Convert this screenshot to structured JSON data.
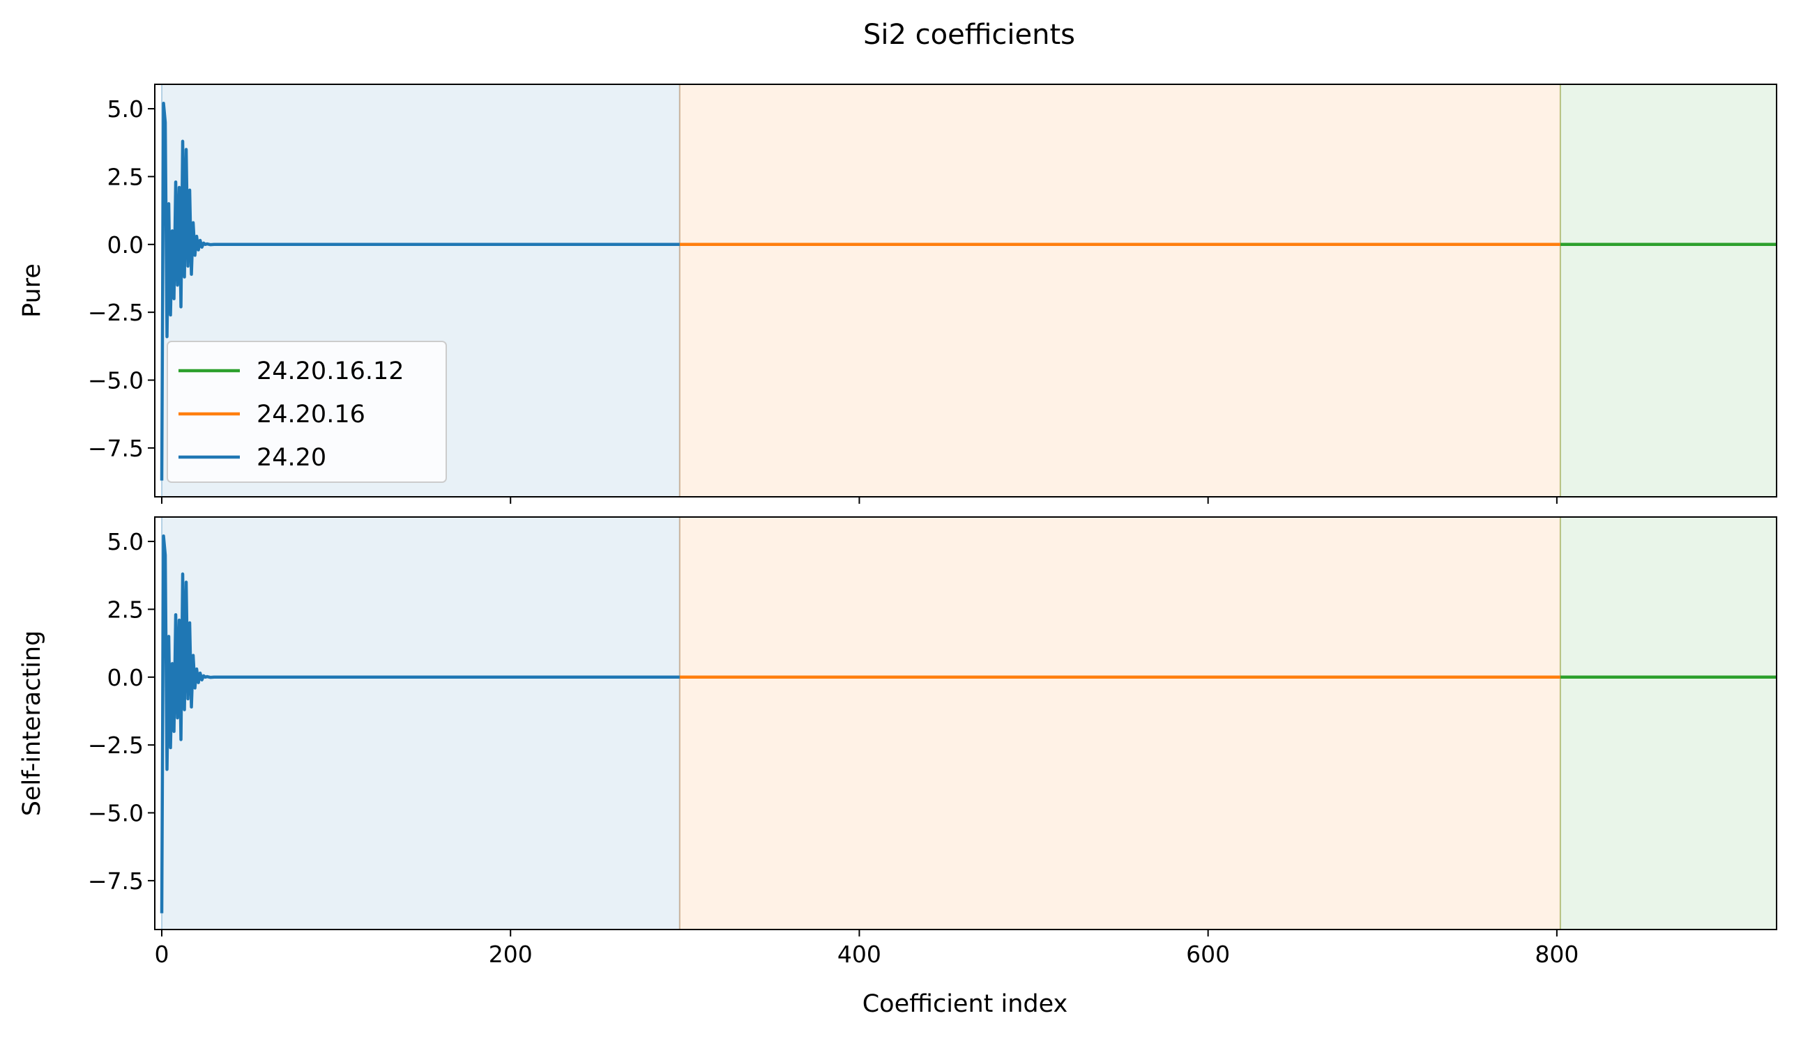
{
  "figure": {
    "title": "Si2 coefficients",
    "xlabel": "Coefficient index"
  },
  "chart_data": [
    {
      "type": "line",
      "ylabel": "Pure",
      "xlim": [
        -4,
        926
      ],
      "ylim": [
        -9.3,
        5.9
      ],
      "xticks": [
        0,
        200,
        400,
        600,
        800
      ],
      "yticks": [
        5.0,
        2.5,
        0.0,
        -2.5,
        -5.0,
        -7.5
      ],
      "ytick_labels": [
        "5.0",
        "2.5",
        "0.0",
        "−2.5",
        "−5.0",
        "−7.5"
      ],
      "show_xtick_labels": false,
      "grid": false,
      "legend": {
        "placement": "lower-left",
        "entries": [
          "24.20.16.12",
          "24.20.16",
          "24.20"
        ]
      },
      "regions": [
        {
          "x0": 0,
          "x1": 297,
          "color": "#1f77b4"
        },
        {
          "x0": 297,
          "x1": 802,
          "color": "#ff7f0e"
        },
        {
          "x0": 802,
          "x1": 926,
          "color": "#2ca02c"
        }
      ],
      "series": [
        {
          "name": "24.20.16.12",
          "color": "#2ca02c",
          "x_range": [
            802,
            926
          ],
          "values": [
            0.0,
            0.0
          ]
        },
        {
          "name": "24.20.16",
          "color": "#ff7f0e",
          "x_range": [
            297,
            802
          ],
          "values": [
            0.0,
            0.0
          ]
        },
        {
          "name": "24.20",
          "color": "#1f77b4",
          "x": [
            0,
            1,
            2,
            3,
            4,
            5,
            6,
            7,
            8,
            9,
            10,
            11,
            12,
            13,
            14,
            15,
            16,
            17,
            18,
            19,
            20,
            21,
            22,
            23,
            24,
            25,
            26,
            28,
            30,
            35,
            40,
            60,
            100,
            150,
            200,
            250,
            297
          ],
          "values": [
            -8.7,
            5.2,
            4.5,
            -3.4,
            1.5,
            -2.6,
            0.5,
            -2.0,
            2.3,
            -1.5,
            2.1,
            -2.3,
            3.8,
            -1.2,
            3.5,
            -0.8,
            2.0,
            -1.1,
            0.8,
            -0.4,
            0.3,
            -0.2,
            0.15,
            -0.1,
            0.05,
            0.0,
            0.02,
            -0.01,
            0.0,
            0.0,
            0.0,
            0.0,
            0.0,
            0.0,
            0.0,
            0.0,
            0.0
          ]
        }
      ]
    },
    {
      "type": "line",
      "ylabel": "Self-interacting",
      "xlim": [
        -4,
        926
      ],
      "ylim": [
        -9.3,
        5.9
      ],
      "xticks": [
        0,
        200,
        400,
        600,
        800
      ],
      "xtick_labels": [
        "0",
        "200",
        "400",
        "600",
        "800"
      ],
      "yticks": [
        5.0,
        2.5,
        0.0,
        -2.5,
        -5.0,
        -7.5
      ],
      "ytick_labels": [
        "5.0",
        "2.5",
        "0.0",
        "−2.5",
        "−5.0",
        "−7.5"
      ],
      "show_xtick_labels": true,
      "grid": false,
      "regions": [
        {
          "x0": 0,
          "x1": 297,
          "color": "#1f77b4"
        },
        {
          "x0": 297,
          "x1": 802,
          "color": "#ff7f0e"
        },
        {
          "x0": 802,
          "x1": 926,
          "color": "#2ca02c"
        }
      ],
      "series": [
        {
          "color": "#2ca02c",
          "x_range": [
            802,
            926
          ],
          "values": [
            0.0,
            0.0
          ]
        },
        {
          "color": "#ff7f0e",
          "x_range": [
            297,
            802
          ],
          "values": [
            0.0,
            0.0
          ]
        },
        {
          "color": "#1f77b4",
          "x": [
            0,
            1,
            2,
            3,
            4,
            5,
            6,
            7,
            8,
            9,
            10,
            11,
            12,
            13,
            14,
            15,
            16,
            17,
            18,
            19,
            20,
            21,
            22,
            23,
            24,
            25,
            26,
            28,
            30,
            35,
            40,
            60,
            100,
            150,
            200,
            250,
            297
          ],
          "values": [
            -8.7,
            5.2,
            4.5,
            -3.4,
            1.5,
            -2.6,
            0.5,
            -2.0,
            2.3,
            -1.5,
            2.1,
            -2.3,
            3.8,
            -1.2,
            3.5,
            -0.8,
            2.0,
            -1.1,
            0.8,
            -0.4,
            0.3,
            -0.2,
            0.15,
            -0.1,
            0.05,
            0.0,
            0.02,
            -0.01,
            0.0,
            0.0,
            0.0,
            0.0,
            0.0,
            0.0,
            0.0,
            0.0,
            0.0
          ]
        }
      ]
    }
  ]
}
